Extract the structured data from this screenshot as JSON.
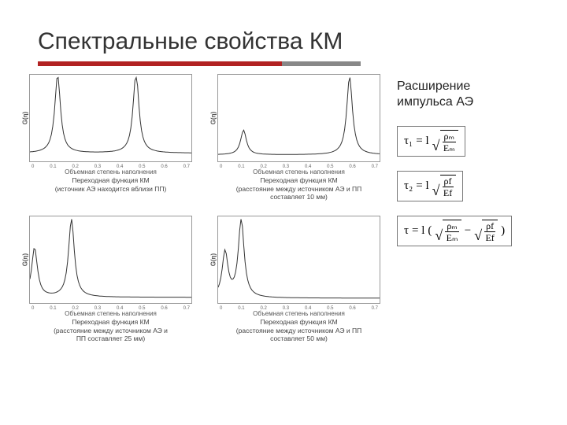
{
  "title": "Спектральные свойства КМ",
  "divider": {
    "red_width": 310,
    "grey_width": 100,
    "red_color": "#b22222",
    "grey_color": "#888888"
  },
  "sidebar": {
    "heading_l1": "Расширение",
    "heading_l2": "импульса АЭ",
    "formula1": {
      "lhs": "τ₁",
      "eq": " = l",
      "num": "ρₘ",
      "den": "Eₘ"
    },
    "formula2": {
      "lhs": "τ₂",
      "eq": " = l",
      "num": "ρf",
      "den": "Ef"
    },
    "formula3": {
      "lhs": "τ",
      "eq": " = l",
      "a_num": "ρₘ",
      "a_den": "Eₘ",
      "minus": " − ",
      "b_num": "ρf",
      "b_den": "Ef"
    }
  },
  "charts": {
    "ylabel": "G(η)",
    "xlabel": "Объемная степень наполнения",
    "xticks": [
      "0",
      "0.1",
      "0.2",
      "0.3",
      "0.4",
      "0.5",
      "0.6",
      "0.7"
    ],
    "line_color": "#333333",
    "line_width": 1,
    "xlim": [
      0,
      0.7
    ],
    "items": [
      {
        "caption_l1": "Переходная функция КМ",
        "caption_l2": "(источник АЭ находится вблизи ПП)",
        "peaks": [
          {
            "x": 0.12,
            "h": 0.95
          },
          {
            "x": 0.46,
            "h": 0.98
          }
        ],
        "base": 0.08
      },
      {
        "caption_l1": "Переходная функция КМ",
        "caption_l2": "(расстояние между источником АЭ и  ПП",
        "caption_l3": "составляет 10 мм)",
        "peaks": [
          {
            "x": 0.11,
            "h": 0.3
          },
          {
            "x": 0.57,
            "h": 0.95
          }
        ],
        "base": 0.06
      },
      {
        "caption_l1": "Переходная функция КМ",
        "caption_l2": "(расстояние между источником АЭ и",
        "caption_l3": "ПП составляет 25 мм)",
        "peaks": [
          {
            "x": 0.02,
            "h": 0.6
          },
          {
            "x": 0.18,
            "h": 0.95
          }
        ],
        "base": 0.05
      },
      {
        "caption_l1": "Переходная функция КМ",
        "caption_l2": "(расстояние между источником АЭ и ПП",
        "caption_l3": "составляет 50 мм)",
        "peaks": [
          {
            "x": 0.03,
            "h": 0.55
          },
          {
            "x": 0.1,
            "h": 0.95
          }
        ],
        "base": 0.04
      }
    ]
  }
}
